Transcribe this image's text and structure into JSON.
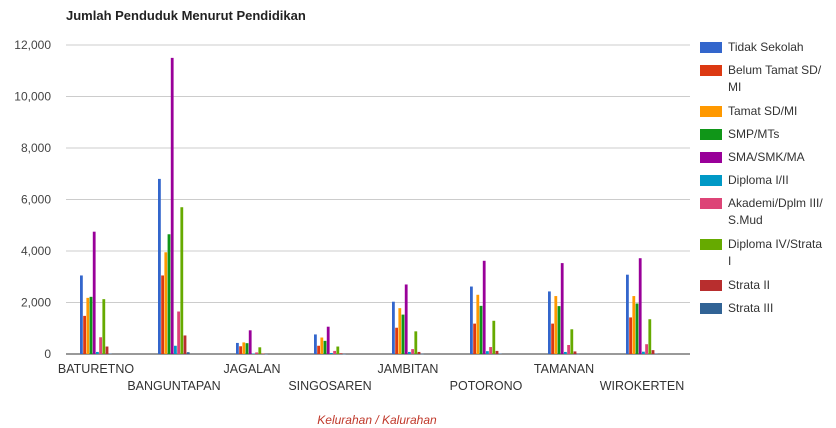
{
  "chart_data": {
    "type": "bar",
    "title": "Jumlah Penduduk Menurut Pendidikan",
    "xlabel": "Kelurahan / Kalurahan",
    "ylabel": "",
    "ylim": [
      0,
      12000
    ],
    "yticks": [
      0,
      2000,
      4000,
      6000,
      8000,
      10000,
      12000
    ],
    "ytick_labels": [
      "0",
      "2,000",
      "4,000",
      "6,000",
      "8,000",
      "10,000",
      "12,000"
    ],
    "grid": true,
    "legend_position": "right",
    "categories": [
      "BATURETNO",
      "BANGUNTAPAN",
      "JAGALAN",
      "SINGOSAREN",
      "JAMBITAN",
      "POTORONO",
      "TAMANAN",
      "WIROKERTEN"
    ],
    "series": [
      {
        "name": "Tidak Sekolah",
        "color": "#3366cc",
        "values": [
          3050,
          6800,
          430,
          760,
          2030,
          2620,
          2430,
          3080
        ]
      },
      {
        "name": "Belum Tamat SD/ MI",
        "color": "#dc3912",
        "values": [
          1480,
          3050,
          300,
          320,
          1020,
          1180,
          1180,
          1420
        ]
      },
      {
        "name": "Tamat SD/MI",
        "color": "#ff9900",
        "values": [
          2180,
          3950,
          450,
          640,
          1780,
          2300,
          2250,
          2250
        ]
      },
      {
        "name": "SMP/MTs",
        "color": "#109618",
        "values": [
          2220,
          4650,
          420,
          510,
          1530,
          1870,
          1860,
          1960
        ]
      },
      {
        "name": "SMA/SMK/MA",
        "color": "#990099",
        "values": [
          4750,
          11500,
          920,
          1060,
          2700,
          3620,
          3530,
          3720
        ]
      },
      {
        "name": "Diploma I/II",
        "color": "#0099c6",
        "values": [
          80,
          320,
          20,
          40,
          80,
          110,
          80,
          90
        ]
      },
      {
        "name": "Akademi/Dplm III/ S.Mud",
        "color": "#dd4477",
        "values": [
          650,
          1650,
          60,
          120,
          190,
          270,
          350,
          380
        ]
      },
      {
        "name": "Diploma IV/Strata I",
        "color": "#66aa00",
        "values": [
          2130,
          5700,
          260,
          290,
          880,
          1290,
          960,
          1350
        ]
      },
      {
        "name": "Strata II",
        "color": "#b82e2e",
        "values": [
          290,
          720,
          20,
          30,
          80,
          120,
          100,
          150
        ]
      },
      {
        "name": "Strata III",
        "color": "#316395",
        "values": [
          20,
          70,
          5,
          5,
          10,
          20,
          10,
          20
        ]
      }
    ],
    "legend_lines": [
      [
        "Tidak Sekolah"
      ],
      [
        "Belum Tamat SD/",
        "MI"
      ],
      [
        "Tamat SD/MI"
      ],
      [
        "SMP/MTs"
      ],
      [
        "SMA/SMK/MA"
      ],
      [
        "Diploma I/II"
      ],
      [
        "Akademi/Dplm III/",
        "S.Mud"
      ],
      [
        "Diploma IV/Strata",
        "I"
      ],
      [
        "Strata II"
      ],
      [
        "Strata III"
      ]
    ]
  }
}
